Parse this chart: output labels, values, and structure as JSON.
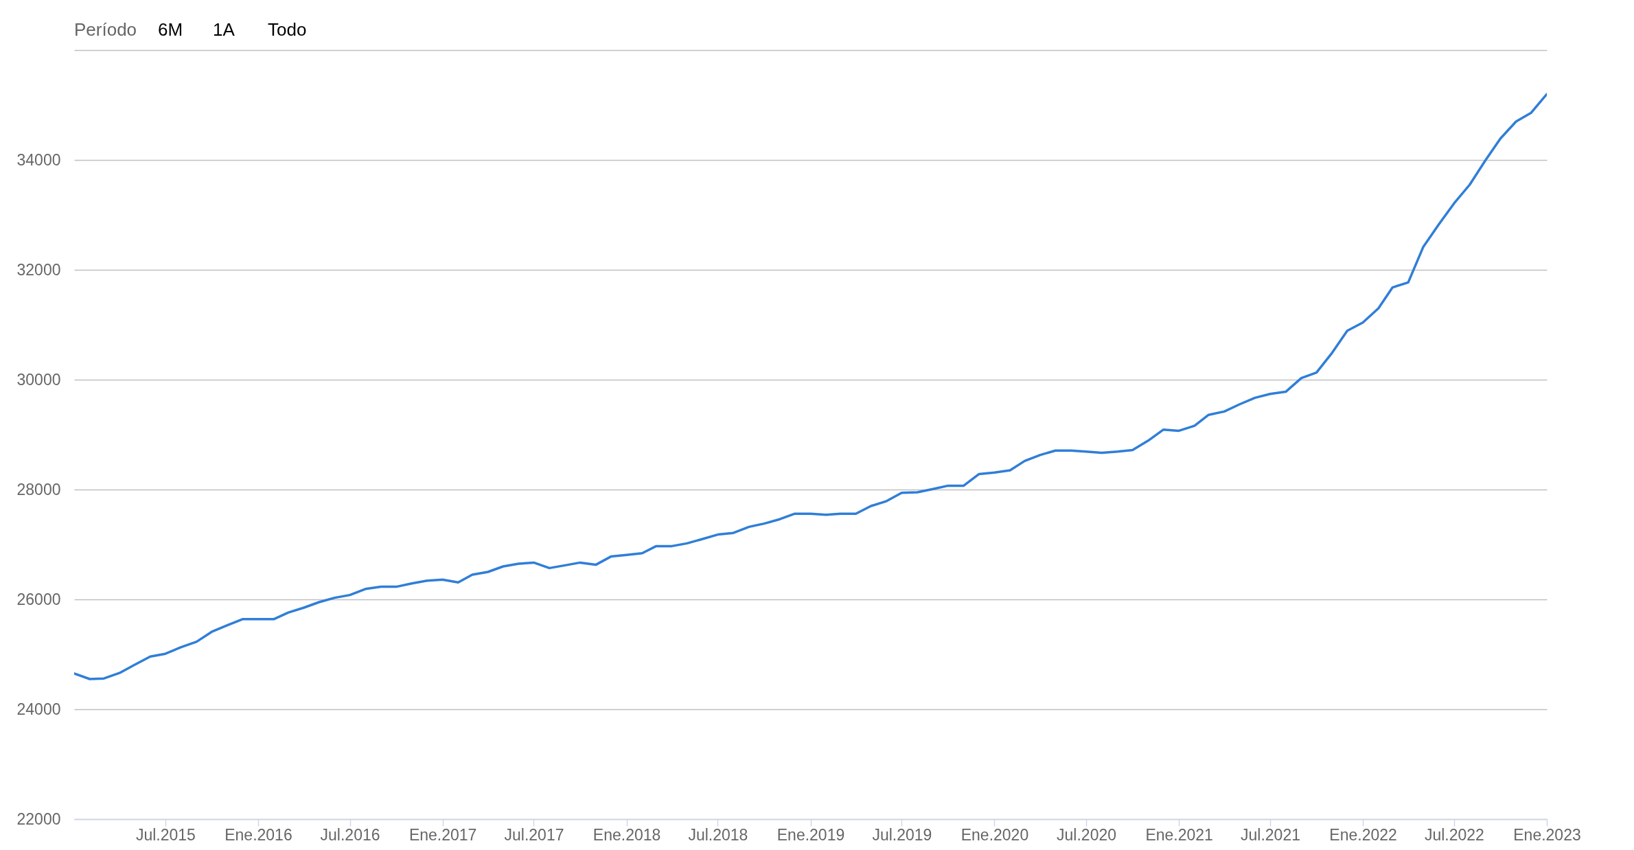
{
  "chart_data": {
    "type": "line",
    "x": [
      "2015-01",
      "2015-02",
      "2015-03",
      "2015-04",
      "2015-05",
      "2015-06",
      "2015-07",
      "2015-08",
      "2015-09",
      "2015-10",
      "2015-11",
      "2015-12",
      "2016-01",
      "2016-02",
      "2016-03",
      "2016-04",
      "2016-05",
      "2016-06",
      "2016-07",
      "2016-08",
      "2016-09",
      "2016-10",
      "2016-11",
      "2016-12",
      "2017-01",
      "2017-02",
      "2017-03",
      "2017-04",
      "2017-05",
      "2017-06",
      "2017-07",
      "2017-08",
      "2017-09",
      "2017-10",
      "2017-11",
      "2017-12",
      "2018-01",
      "2018-02",
      "2018-03",
      "2018-04",
      "2018-05",
      "2018-06",
      "2018-07",
      "2018-08",
      "2018-09",
      "2018-10",
      "2018-11",
      "2018-12",
      "2019-01",
      "2019-02",
      "2019-03",
      "2019-04",
      "2019-05",
      "2019-06",
      "2019-07",
      "2019-08",
      "2019-09",
      "2019-10",
      "2019-11",
      "2019-12",
      "2020-01",
      "2020-02",
      "2020-03",
      "2020-04",
      "2020-05",
      "2020-06",
      "2020-07",
      "2020-08",
      "2020-09",
      "2020-10",
      "2020-11",
      "2020-12",
      "2021-01",
      "2021-02",
      "2021-03",
      "2021-04",
      "2021-05",
      "2021-06",
      "2021-07",
      "2021-08",
      "2021-09",
      "2021-10",
      "2021-11",
      "2021-12",
      "2022-01",
      "2022-02",
      "2022-03",
      "2022-04",
      "2022-05",
      "2022-06",
      "2022-07",
      "2022-08",
      "2022-09",
      "2022-10",
      "2022-11",
      "2022-12",
      "2023-01"
    ],
    "series": [
      {
        "color": "#2f7ed8",
        "values": [
          24650,
          24550,
          24560,
          24660,
          24810,
          24960,
          25010,
          25130,
          25230,
          25410,
          25530,
          25640,
          25640,
          25640,
          25760,
          25850,
          25950,
          26030,
          26080,
          26190,
          26230,
          26230,
          26290,
          26340,
          26360,
          26310,
          26450,
          26500,
          26600,
          26650,
          26670,
          26570,
          26620,
          26670,
          26630,
          26780,
          26810,
          26840,
          26970,
          26970,
          27020,
          27100,
          27180,
          27210,
          27320,
          27380,
          27460,
          27560,
          27560,
          27540,
          27560,
          27560,
          27700,
          27790,
          27940,
          27950,
          28010,
          28070,
          28070,
          28280,
          28310,
          28350,
          28520,
          28630,
          28710,
          28710,
          28690,
          28670,
          28690,
          28720,
          28890,
          29090,
          29070,
          29160,
          29360,
          29420,
          29550,
          29670,
          29740,
          29780,
          30030,
          30130,
          30490,
          30890,
          31040,
          31300,
          31680,
          31770,
          32420,
          32830,
          33210,
          33550,
          33990,
          34390,
          34700,
          34860,
          35200
        ]
      }
    ],
    "xlim": [
      "2015-01",
      "2023-01"
    ],
    "xticks": [
      {
        "value": "2015-07",
        "label": "Jul.2015"
      },
      {
        "value": "2016-01",
        "label": "Ene.2016"
      },
      {
        "value": "2016-07",
        "label": "Jul.2016"
      },
      {
        "value": "2017-01",
        "label": "Ene.2017"
      },
      {
        "value": "2017-07",
        "label": "Jul.2017"
      },
      {
        "value": "2018-01",
        "label": "Ene.2018"
      },
      {
        "value": "2018-07",
        "label": "Jul.2018"
      },
      {
        "value": "2019-01",
        "label": "Ene.2019"
      },
      {
        "value": "2019-07",
        "label": "Jul.2019"
      },
      {
        "value": "2020-01",
        "label": "Ene.2020"
      },
      {
        "value": "2020-07",
        "label": "Jul.2020"
      },
      {
        "value": "2021-01",
        "label": "Ene.2021"
      },
      {
        "value": "2021-07",
        "label": "Jul.2021"
      },
      {
        "value": "2022-01",
        "label": "Ene.2022"
      },
      {
        "value": "2022-07",
        "label": "Jul.2022"
      },
      {
        "value": "2023-01",
        "label": "Ene.2023"
      }
    ],
    "ylim": [
      22000,
      36000
    ],
    "yticks": [
      22000,
      24000,
      26000,
      28000,
      30000,
      32000,
      34000,
      {
        "value": 36000,
        "label": null
      }
    ],
    "grid": "y",
    "line_style": "solid",
    "annotations": [
      "Período",
      "6M",
      "1A",
      "Todo"
    ]
  }
}
